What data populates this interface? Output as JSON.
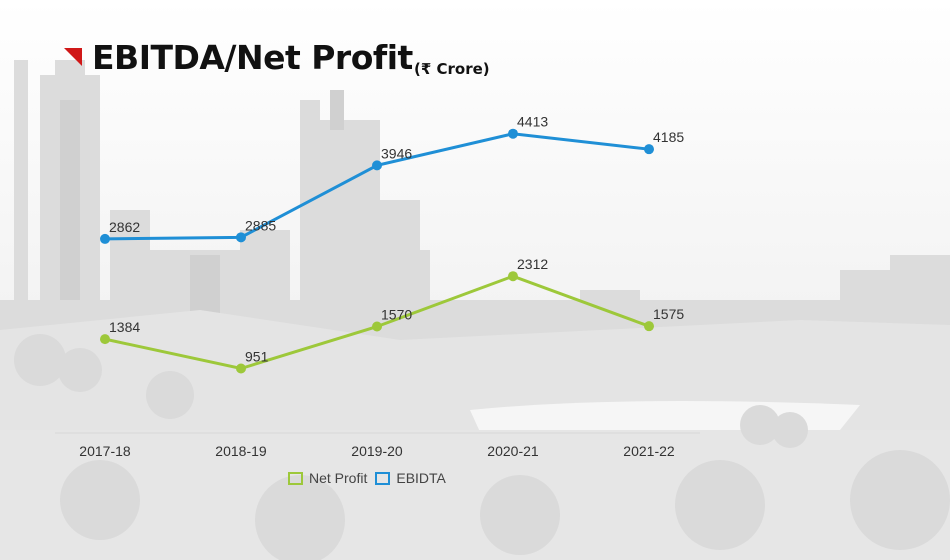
{
  "title": "EBITDA/Net Profit",
  "title_unit": "(₹ Crore)",
  "colors": {
    "net_profit": "#9dc83a",
    "ebitda": "#1f8fd6",
    "title_flag": "#d01818"
  },
  "chart_data": {
    "type": "line",
    "title": "EBITDA/Net Profit",
    "subtitle": "(₹ Crore)",
    "categories": [
      "2017-18",
      "2018-19",
      "2019-20",
      "2020-21",
      "2021-22"
    ],
    "series": [
      {
        "name": "Net Profit",
        "values": [
          1384,
          951,
          1570,
          2312,
          1575
        ]
      },
      {
        "name": "EBIDTA",
        "values": [
          2862,
          2885,
          3946,
          4413,
          4185
        ]
      }
    ],
    "ylim": [
      0,
      5500
    ],
    "grid": false,
    "legend_position": "bottom"
  }
}
